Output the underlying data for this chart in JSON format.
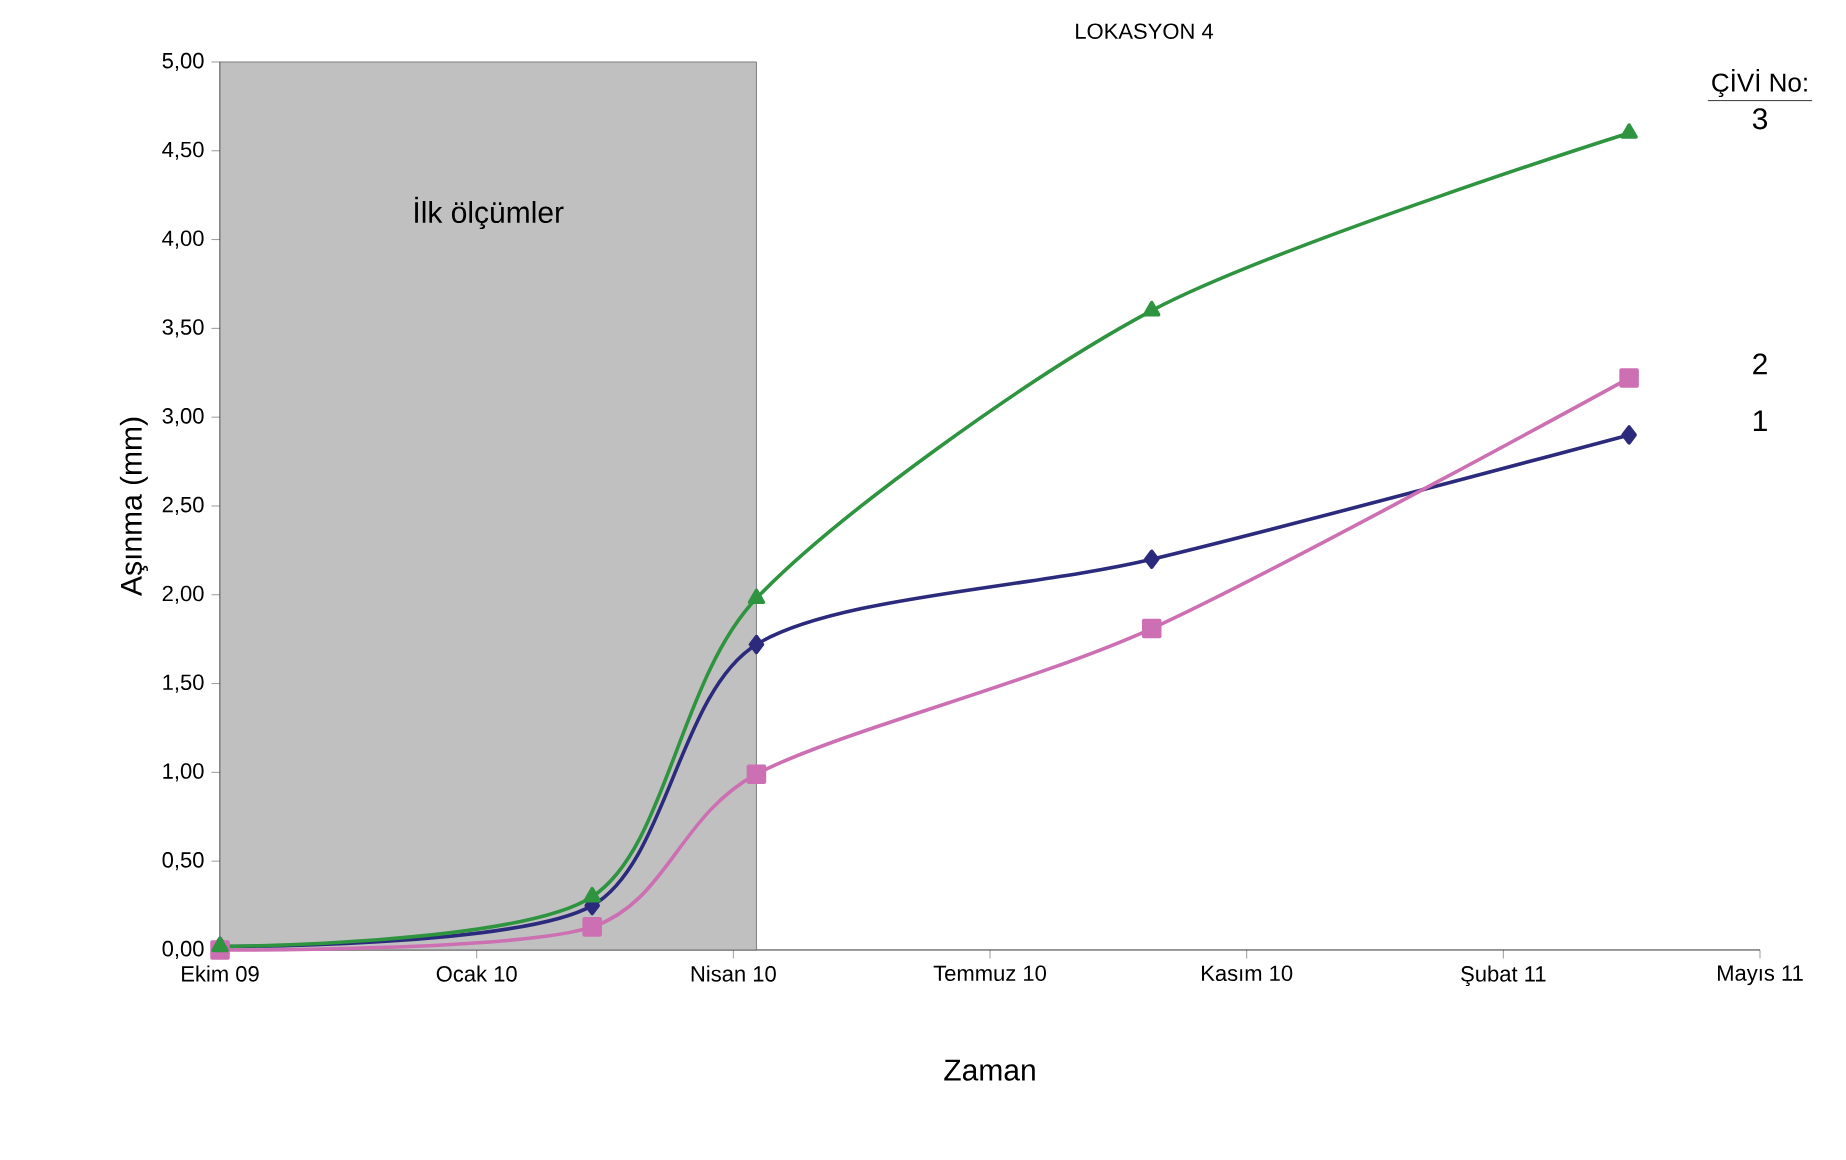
{
  "chart_data": {
    "type": "line",
    "title": "LOKASYON 4",
    "xlabel": "Zaman",
    "ylabel": "Aşınma (mm)",
    "legend_title": "ÇİVİ No:",
    "x": [
      "2009-10-01",
      "2010-02-23",
      "2010-04-28",
      "2010-09-29",
      "2011-04-03"
    ],
    "series": [
      {
        "name": "1",
        "color": "#2b2a7c",
        "marker": "diamond",
        "values": [
          0.02,
          0.25,
          1.72,
          2.2,
          2.9
        ]
      },
      {
        "name": "2",
        "color": "#cc6fb3",
        "marker": "square",
        "values": [
          0.0,
          0.13,
          0.99,
          1.81,
          3.22
        ]
      },
      {
        "name": "3",
        "color": "#2e9440",
        "marker": "triangle",
        "values": [
          0.02,
          0.3,
          1.98,
          3.6,
          4.6
        ]
      }
    ],
    "xlim": [
      "2009-10-01",
      "2011-05-24"
    ],
    "xticks": [
      {
        "value": "2009-10-01",
        "label": "Ekim 09"
      },
      {
        "value": "2010-01-09",
        "label": "Ocak 10"
      },
      {
        "value": "2010-04-19",
        "label": "Nisan 10"
      },
      {
        "value": "2010-07-28",
        "label": "Temmuz 10"
      },
      {
        "value": "2010-11-05",
        "label": "Kasım 10"
      },
      {
        "value": "2011-02-13",
        "label": "Şubat 11"
      },
      {
        "value": "2011-05-24",
        "label": "Mayıs 11"
      }
    ],
    "ylim": [
      0,
      5
    ],
    "yticks": [
      {
        "value": 0,
        "label": "0,00"
      },
      {
        "value": 0.5,
        "label": "0,50"
      },
      {
        "value": 1,
        "label": "1,00"
      },
      {
        "value": 1.5,
        "label": "1,50"
      },
      {
        "value": 2,
        "label": "2,00"
      },
      {
        "value": 2.5,
        "label": "2,50"
      },
      {
        "value": 3,
        "label": "3,00"
      },
      {
        "value": 3.5,
        "label": "3,50"
      },
      {
        "value": 4,
        "label": "4,00"
      },
      {
        "value": 4.5,
        "label": "4,50"
      },
      {
        "value": 5,
        "label": "5,00"
      }
    ],
    "bands": [
      {
        "axis": "x",
        "from": "2009-10-01",
        "to": "2010-04-28",
        "label": "İlk ölçümler",
        "color": "#c0c0c0"
      }
    ],
    "grid": false,
    "legend": "right",
    "line_style": "solid"
  }
}
